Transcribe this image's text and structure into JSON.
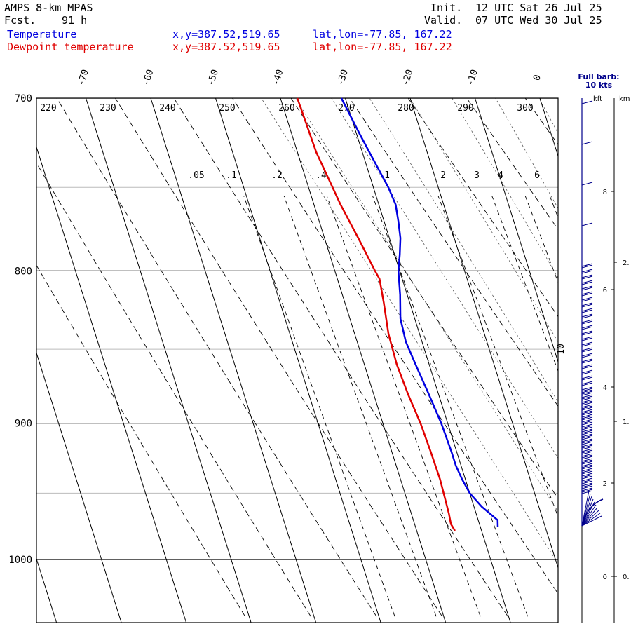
{
  "header": {
    "title": "AMPS 8-km MPAS",
    "fcst_label": "Fcst.",
    "fcst_value": "91 h",
    "init_label": "Init.",
    "init_value": "12 UTC Sat 26 Jul 25",
    "valid_label": "Valid.",
    "valid_value": "07 UTC Wed 30 Jul 25",
    "series": [
      {
        "name": "Temperature",
        "xy": "x,y=387.52,519.65",
        "latlon": "lat,lon=-77.85, 167.22",
        "color": "#0000e0"
      },
      {
        "name": "Dewpoint temperature",
        "xy": "x,y=387.52,519.65",
        "latlon": "lat,lon=-77.85, 167.22",
        "color": "#e00000"
      }
    ]
  },
  "wind_panel": {
    "title_line1": "Full barb:",
    "title_line2": "10 kts",
    "kft_label": "kft",
    "km_label": "km",
    "kft_ticks": [
      "8",
      "6",
      "4",
      "2",
      "0"
    ],
    "km_ticks": [
      "2.",
      "1.",
      "0."
    ]
  },
  "chart_data": {
    "type": "line",
    "subtype": "skew-T log-P",
    "pressure_levels": [
      "700",
      "800",
      "900",
      "1000"
    ],
    "temperature_ticks": [
      "-70",
      "-60",
      "-50",
      "-40",
      "-30",
      "-20",
      "-10",
      "0"
    ],
    "temperature_tick_10": "10",
    "isentrope_labels": [
      "220",
      "230",
      "240",
      "250",
      "260",
      "270",
      "280",
      "290",
      "300"
    ],
    "mixing_ratio_labels": [
      ".05",
      ".1",
      ".2",
      ".4",
      "1",
      "2",
      "3",
      "4",
      "6"
    ],
    "series": [
      {
        "name": "Temperature",
        "color": "#0000e0",
        "points": [
          [
            975,
            -27.3
          ],
          [
            970,
            -27.0
          ],
          [
            960,
            -28.8
          ],
          [
            950,
            -30.0
          ],
          [
            940,
            -30.5
          ],
          [
            930,
            -30.8
          ],
          [
            920,
            -30.8
          ],
          [
            900,
            -31.0
          ],
          [
            880,
            -31.5
          ],
          [
            860,
            -32.1
          ],
          [
            845,
            -32.5
          ],
          [
            830,
            -32.2
          ],
          [
            815,
            -31.1
          ],
          [
            800,
            -30.2
          ],
          [
            790,
            -29.2
          ],
          [
            780,
            -28.3
          ],
          [
            770,
            -27.8
          ],
          [
            760,
            -27.4
          ],
          [
            750,
            -27.7
          ],
          [
            735,
            -28.6
          ],
          [
            720,
            -29.5
          ],
          [
            700,
            -30.6
          ]
        ]
      },
      {
        "name": "Dewpoint temperature",
        "color": "#e00000",
        "points": [
          [
            978,
            -34.1
          ],
          [
            973,
            -34.4
          ],
          [
            965,
            -34.2
          ],
          [
            940,
            -33.9
          ],
          [
            920,
            -34.0
          ],
          [
            900,
            -34.2
          ],
          [
            880,
            -34.7
          ],
          [
            860,
            -35.0
          ],
          [
            840,
            -34.8
          ],
          [
            820,
            -34.0
          ],
          [
            805,
            -33.5
          ],
          [
            800,
            -33.8
          ],
          [
            780,
            -34.8
          ],
          [
            760,
            -35.9
          ],
          [
            730,
            -37.1
          ],
          [
            700,
            -37.4
          ]
        ]
      }
    ]
  }
}
